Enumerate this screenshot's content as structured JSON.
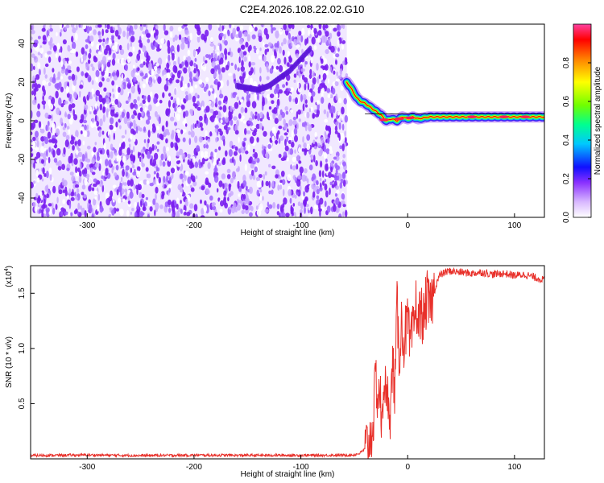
{
  "title": "C2E4.2026.108.22.02.G10",
  "chart_data": [
    {
      "type": "heatmap",
      "title": "C2E4.2026.108.22.02.G10",
      "xlabel": "Height of straight line (km)",
      "ylabel": "Frequency (Hz)",
      "xlim": [
        -353,
        128
      ],
      "ylim": [
        -50,
        50
      ],
      "xticks": [
        -300,
        -200,
        -100,
        0,
        100
      ],
      "xtick_labels": [
        "-300",
        "-200",
        "-100",
        "0",
        "100"
      ],
      "yticks": [
        -40,
        -20,
        0,
        20,
        40
      ],
      "ytick_labels": [
        "-40",
        "-20",
        "0",
        "20",
        "40"
      ],
      "colorbar": {
        "label": "Normalized spectral amplitude",
        "range": [
          0,
          1
        ],
        "ticks": [
          0.0,
          0.2,
          0.4,
          0.6,
          0.8
        ],
        "tick_labels": [
          "0.0",
          "0.2",
          "0.4",
          "0.6",
          "0.8"
        ],
        "colormap": [
          "#ffffff",
          "#c8a0ff",
          "#7000e0",
          "#0000ff",
          "#00c8ff",
          "#00ff80",
          "#80ff00",
          "#ffff00",
          "#ff8000",
          "#ff0000",
          "#ff40a0"
        ]
      },
      "noise_region_x": [
        -353,
        -57
      ],
      "signal_track": {
        "x": [
          -57,
          -52,
          -48,
          -44,
          -40,
          -35,
          -30,
          -25,
          -20,
          -15,
          -10,
          -5,
          0,
          5,
          10,
          20,
          40,
          60,
          80,
          100,
          128
        ],
        "y": [
          20,
          16,
          12,
          10,
          9,
          7,
          5,
          3,
          0,
          1,
          0,
          2,
          1,
          2,
          1,
          2,
          2,
          2,
          2,
          2,
          2
        ]
      },
      "faint_arc": {
        "x": [
          -160,
          -150,
          -140,
          -130,
          -120,
          -110,
          -100,
          -90
        ],
        "y": [
          18,
          17,
          16,
          18,
          22,
          26,
          32,
          38
        ]
      }
    },
    {
      "type": "line",
      "xlabel": "Height of straight line (km)",
      "ylabel": "SNR (10 * v/v)",
      "y_scale_label": "(x10",
      "y_scale_exp": "4",
      "y_scale_suffix": ")",
      "xlim": [
        -353,
        128
      ],
      "ylim": [
        0,
        17500
      ],
      "xticks": [
        -300,
        -200,
        -100,
        0,
        100
      ],
      "xtick_labels": [
        "-300",
        "-200",
        "-100",
        "0",
        "100"
      ],
      "yticks": [
        5000,
        10000,
        15000
      ],
      "ytick_labels": [
        "0.5",
        "1.0",
        "1.5"
      ],
      "color": "#e8302a",
      "series": [
        {
          "x": [
            -353,
            -300,
            -250,
            -200,
            -150,
            -100,
            -60,
            -50,
            -45,
            -40,
            -35,
            -32,
            -30,
            -28,
            -26,
            -24,
            -22,
            -20,
            -18,
            -16,
            -14,
            -12,
            -10,
            -8,
            -6,
            -4,
            -2,
            0,
            2,
            5,
            8,
            10,
            12,
            15,
            18,
            20,
            22,
            25,
            28,
            30,
            35,
            40,
            50,
            60,
            70,
            80,
            90,
            100,
            110,
            120,
            128
          ],
          "y": [
            300,
            350,
            300,
            330,
            320,
            320,
            330,
            360,
            500,
            900,
            1800,
            3500,
            7500,
            5500,
            6500,
            2000,
            8500,
            4500,
            6000,
            4000,
            9000,
            6000,
            14000,
            9000,
            12500,
            10500,
            11500,
            12500,
            10000,
            11500,
            14200,
            12000,
            13500,
            12500,
            14800,
            13600,
            14200,
            15200,
            16200,
            16600,
            16900,
            17000,
            16900,
            16800,
            16900,
            16700,
            16800,
            16600,
            16700,
            16400,
            16200
          ]
        }
      ]
    }
  ]
}
